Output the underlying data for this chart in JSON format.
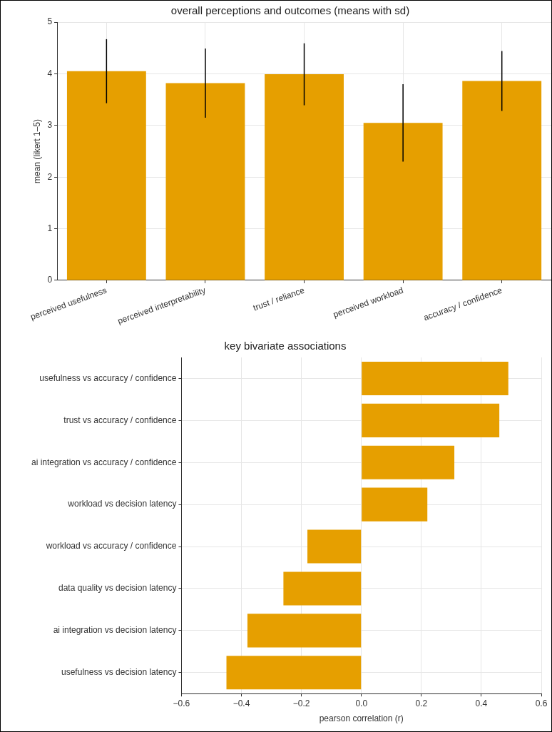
{
  "chart_data": [
    {
      "type": "bar",
      "title": "overall perceptions and outcomes (means with sd)",
      "ylabel": "mean (likert 1–5)",
      "categories": [
        "perceived usefulness",
        "perceived interpretability",
        "trust / reliance",
        "perceived workload",
        "accuracy / confidence"
      ],
      "values": [
        4.05,
        3.82,
        3.99,
        3.05,
        3.86
      ],
      "errors": [
        0.62,
        0.67,
        0.6,
        0.75,
        0.58
      ],
      "color": "#e69f00",
      "ylim": [
        0,
        5
      ],
      "yticks": [
        0,
        1,
        2,
        3,
        4,
        5
      ],
      "grid": true,
      "legend": false
    },
    {
      "type": "bar",
      "orientation": "horizontal",
      "title": "key bivariate associations",
      "xlabel": "pearson correlation (r)",
      "categories": [
        "usefulness vs accuracy / confidence",
        "trust vs accuracy / confidence",
        "ai integration vs accuracy / confidence",
        "workload vs decision latency",
        "workload vs accuracy / confidence",
        "data quality vs decision latency",
        "ai integration vs decision latency",
        "usefulness vs decision latency"
      ],
      "values": [
        0.49,
        0.46,
        0.31,
        0.22,
        -0.18,
        -0.26,
        -0.38,
        -0.45
      ],
      "color": "#e69f00",
      "xlim": [
        -0.6,
        0.6
      ],
      "xticks": [
        {
          "value": -0.6,
          "label": "−0.6"
        },
        {
          "value": -0.4,
          "label": "−0.4"
        },
        {
          "value": -0.2,
          "label": "−0.2"
        },
        {
          "value": 0,
          "label": "0.0"
        },
        0.2,
        0.4,
        0.6
      ],
      "grid": true,
      "legend": false
    }
  ]
}
